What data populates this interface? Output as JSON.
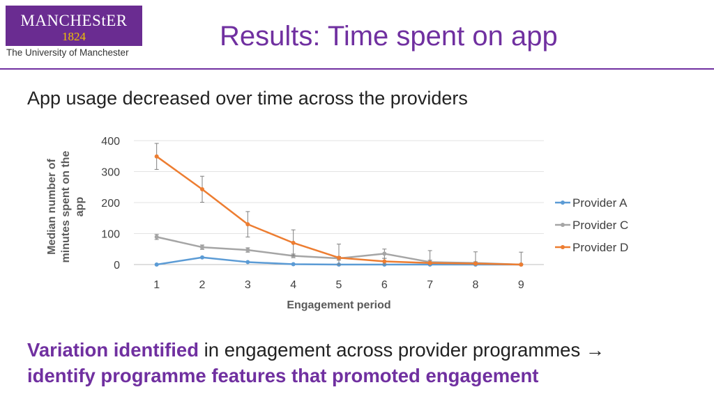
{
  "logo": {
    "word": "MANCHEStER",
    "year": "1824",
    "subtitle": "The University of Manchester"
  },
  "slide": {
    "title": "Results: Time spent on app",
    "subtitle": "App usage decreased over time across the providers",
    "footer": {
      "highlight": "Variation identified",
      "normal": " in engagement across provider programmes ",
      "arrow": "→",
      "line2": "identify programme features that promoted engagement"
    }
  },
  "colors": {
    "accent": "#7030a0",
    "providerA": "#5b9bd5",
    "providerC": "#a5a5a5",
    "providerD": "#ed7d31"
  },
  "chart_data": {
    "type": "line",
    "title": "",
    "xlabel": "Engagement period",
    "ylabel_lines": [
      "Median number of",
      "minutes spent on the",
      "app"
    ],
    "x": [
      1,
      2,
      3,
      4,
      5,
      6,
      7,
      8,
      9
    ],
    "ylim": [
      0,
      400
    ],
    "yticks": [
      0,
      100,
      200,
      300,
      400
    ],
    "series": [
      {
        "name": "Provider A",
        "color": "#5b9bd5",
        "values": [
          0,
          23,
          8,
          1,
          0,
          0,
          0,
          0,
          0
        ],
        "errors": [
          0,
          0,
          0,
          0,
          0,
          0,
          0,
          0,
          0
        ]
      },
      {
        "name": "Provider C",
        "color": "#a5a5a5",
        "values": [
          89,
          56,
          47,
          28,
          20,
          35,
          8,
          5,
          0
        ],
        "errors": [
          8,
          7,
          7,
          6,
          6,
          15,
          6,
          4,
          2
        ]
      },
      {
        "name": "Provider D",
        "color": "#ed7d31",
        "values": [
          349,
          243,
          130,
          70,
          22,
          10,
          5,
          3,
          0
        ],
        "errors": [
          42,
          42,
          41,
          42,
          44,
          10,
          40,
          38,
          40
        ]
      }
    ],
    "legend": "right"
  }
}
